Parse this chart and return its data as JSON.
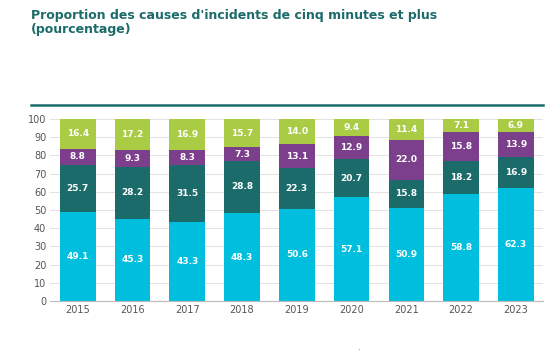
{
  "title_line1": "Proportion des causes d'incidents de cinq minutes et plus",
  "title_line2": "(pourcentage)",
  "years": [
    "2015",
    "2016",
    "2017",
    "2018",
    "2019",
    "2020",
    "2021",
    "2022",
    "2023"
  ],
  "series": {
    "Méfaits, personnes malades": [
      49.1,
      45.3,
      43.3,
      48.3,
      50.6,
      57.1,
      50.9,
      58.8,
      62.3
    ],
    "Matériel roulant": [
      25.7,
      28.2,
      31.5,
      28.8,
      22.3,
      20.7,
      15.8,
      18.2,
      16.9
    ],
    "Équipements fixes": [
      8.8,
      9.3,
      8.3,
      7.3,
      13.1,
      12.9,
      22.0,
      15.8,
      13.9
    ],
    "Autres": [
      16.4,
      17.2,
      16.9,
      15.7,
      14.0,
      9.4,
      11.4,
      7.1,
      6.9
    ]
  },
  "colors": {
    "Méfaits, personnes malades": "#00BFDE",
    "Matériel roulant": "#1B6B6B",
    "Équipements fixes": "#7B3F8C",
    "Autres": "#AACC44"
  },
  "ylim": [
    0,
    100
  ],
  "yticks": [
    0,
    10,
    20,
    30,
    40,
    50,
    60,
    70,
    80,
    90,
    100
  ],
  "title_color": "#1B6B6B",
  "separator_color": "#1B6B6B",
  "text_color_light": "#FFFFFF",
  "grid_color": "#DDDDDD",
  "background_color": "#FFFFFF",
  "bar_width": 0.65,
  "label_fontsize": 6.5,
  "tick_fontsize": 7.0,
  "title_fontsize": 9.0,
  "legend_fontsize": 6.5
}
